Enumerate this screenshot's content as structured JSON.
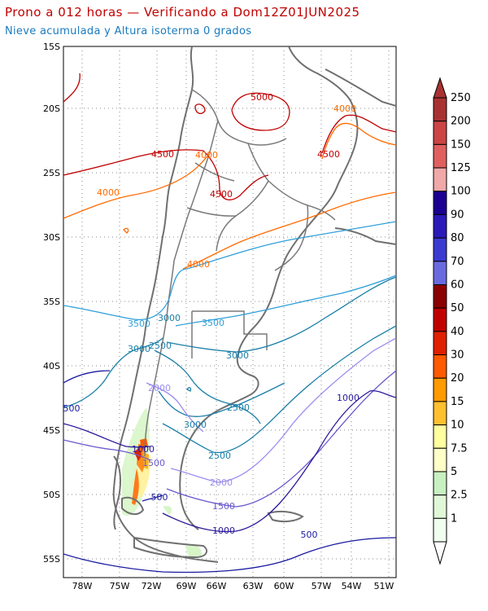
{
  "title": "Prono a 012 horas — Verificando a Dom12Z01JUN2025",
  "subtitle": "Nieve acumulada y Altura isoterma 0 grados",
  "colors": {
    "title": "#c00000",
    "subtitle": "#1a7bbf",
    "coast": "#707070",
    "grid": "#8a8a8a"
  },
  "lat_labels": [
    "15S",
    "20S",
    "25S",
    "30S",
    "35S",
    "40S",
    "45S",
    "50S",
    "55S"
  ],
  "lon_labels": [
    "78W",
    "75W",
    "72W",
    "69W",
    "66W",
    "63W",
    "60W",
    "57W",
    "54W",
    "51W"
  ],
  "contour_labels": [
    {
      "text": "5000",
      "color": "#c00000"
    },
    {
      "text": "4500",
      "color": "#c00000"
    },
    {
      "text": "4500",
      "color": "#c00000"
    },
    {
      "text": "4500",
      "color": "#c00000"
    },
    {
      "text": "4000",
      "color": "#ff6a00"
    },
    {
      "text": "4000",
      "color": "#ff6a00"
    },
    {
      "text": "4000",
      "color": "#ff6a00"
    },
    {
      "text": "4000",
      "color": "#ff6a00"
    },
    {
      "text": "3500",
      "color": "#2f9fd8"
    },
    {
      "text": "3500",
      "color": "#2f9fd8"
    },
    {
      "text": "3000",
      "color": "#1a7fa8"
    },
    {
      "text": "3000",
      "color": "#1a7fa8"
    },
    {
      "text": "3000",
      "color": "#1a7fa8"
    },
    {
      "text": "3000",
      "color": "#1a7fa8"
    },
    {
      "text": "3000",
      "color": "#1a7fa8"
    },
    {
      "text": "2500",
      "color": "#1a7fa8"
    },
    {
      "text": "2500",
      "color": "#1a7fa8"
    },
    {
      "text": "2500",
      "color": "#1a7fa8"
    },
    {
      "text": "2000",
      "color": "#9b8ef0"
    },
    {
      "text": "2000",
      "color": "#9b8ef0"
    },
    {
      "text": "1500",
      "color": "#6a5acd"
    },
    {
      "text": "1500",
      "color": "#6a5acd"
    },
    {
      "text": "1000",
      "color": "#2a1a9a"
    },
    {
      "text": "1000",
      "color": "#2a1a9a"
    },
    {
      "text": "1000",
      "color": "#2a1a9a"
    },
    {
      "text": "500",
      "color": "#1a1aa0"
    },
    {
      "text": "500",
      "color": "#1a1aa0"
    },
    {
      "text": "500",
      "color": "#1a1aa0"
    }
  ],
  "colorbar": {
    "labels": [
      "250",
      "200",
      "150",
      "125",
      "100",
      "90",
      "80",
      "70",
      "60",
      "50",
      "40",
      "30",
      "20",
      "15",
      "10",
      "7.5",
      "5",
      "2.5",
      "1"
    ],
    "colors": [
      "#a83232",
      "#cc4444",
      "#e06060",
      "#f0a8a8",
      "#1a0090",
      "#2a1ab8",
      "#3a3ad0",
      "#6a6ae0",
      "#8b0000",
      "#c00000",
      "#e02000",
      "#ff5a00",
      "#ff9a00",
      "#ffc030",
      "#ffffa0",
      "#ffffc8",
      "#c8f0c0",
      "#e0f8d8",
      "#f0fff0"
    ]
  }
}
